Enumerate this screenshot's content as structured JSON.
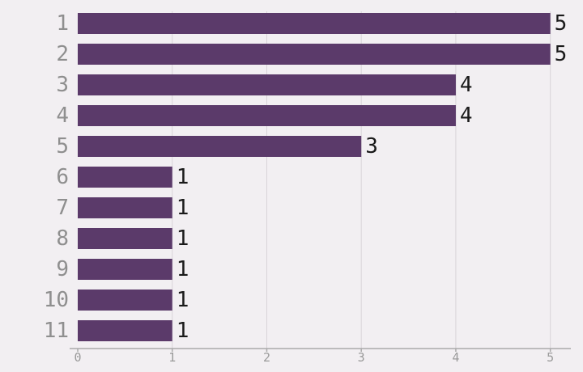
{
  "chart_data": {
    "type": "bar",
    "orientation": "horizontal",
    "categories": [
      "1",
      "2",
      "3",
      "4",
      "5",
      "6",
      "7",
      "8",
      "9",
      "10",
      "11"
    ],
    "values": [
      5,
      5,
      4,
      4,
      3,
      1,
      1,
      1,
      1,
      1,
      1
    ],
    "x_ticks": [
      0,
      1,
      2,
      3,
      4,
      5
    ],
    "xlim": [
      0,
      5.2
    ],
    "grid": true,
    "colors": {
      "bar": "#5b3a6a",
      "background": "#f2eff2"
    }
  }
}
